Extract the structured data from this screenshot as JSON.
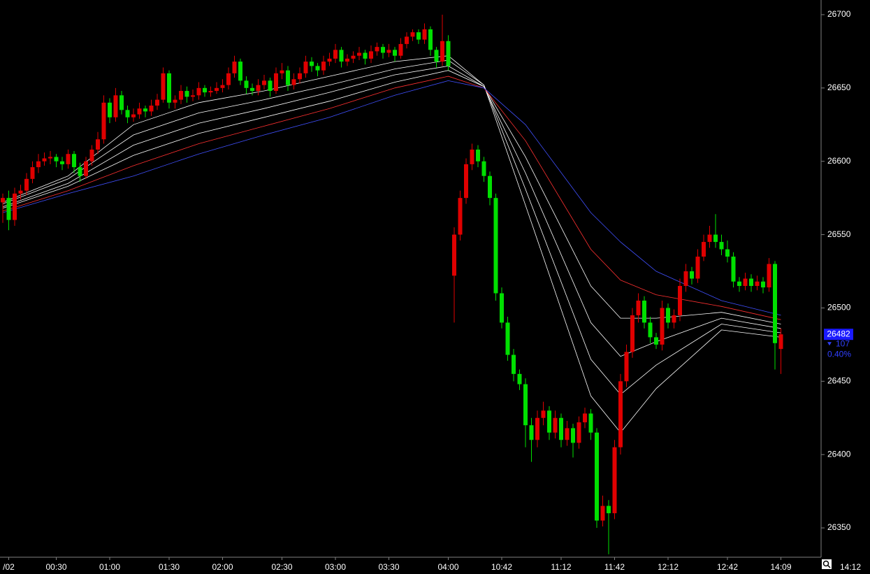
{
  "chart_data": {
    "type": "candlestick",
    "categories": [
      null,
      "/02",
      null,
      null,
      null,
      null,
      null,
      null,
      null,
      "00:30",
      null,
      null,
      null,
      null,
      null,
      null,
      null,
      null,
      "01:00",
      null,
      null,
      null,
      null,
      null,
      null,
      null,
      null,
      null,
      "01:30",
      null,
      null,
      null,
      null,
      null,
      null,
      null,
      null,
      "02:00",
      null,
      null,
      null,
      null,
      null,
      null,
      null,
      null,
      null,
      "02:30",
      null,
      null,
      null,
      null,
      null,
      null,
      null,
      null,
      "03:00",
      null,
      null,
      null,
      null,
      null,
      null,
      null,
      null,
      "03:30",
      null,
      null,
      null,
      null,
      null,
      null,
      null,
      null,
      null,
      "04:00",
      null,
      null,
      null,
      null,
      null,
      null,
      null,
      null,
      "10:42",
      null,
      null,
      null,
      null,
      null,
      null,
      null,
      null,
      null,
      "11:12",
      null,
      null,
      null,
      null,
      null,
      null,
      null,
      null,
      "11:42",
      null,
      null,
      null,
      null,
      null,
      null,
      null,
      null,
      "12:12",
      null,
      null,
      null,
      null,
      null,
      null,
      null,
      null,
      null,
      "12:42",
      null,
      null,
      null,
      null,
      null,
      null,
      null,
      null,
      "14:09"
    ],
    "candles": [
      [
        26572,
        26578,
        26558,
        26575
      ],
      [
        26575,
        26580,
        26553,
        26560
      ],
      [
        26560,
        26582,
        26556,
        26578
      ],
      [
        26578,
        26584,
        26574,
        26580
      ],
      [
        26580,
        26592,
        26577,
        26588
      ],
      [
        26588,
        26600,
        26585,
        26596
      ],
      [
        26596,
        26605,
        26592,
        26600
      ],
      [
        26600,
        26606,
        26597,
        26602
      ],
      [
        26602,
        26607,
        26598,
        26603
      ],
      [
        26603,
        26605,
        26596,
        26600
      ],
      [
        26600,
        26603,
        26594,
        26598
      ],
      [
        26598,
        26608,
        26595,
        26605
      ],
      [
        26605,
        26607,
        26592,
        26596
      ],
      [
        26596,
        26599,
        26586,
        26590
      ],
      [
        26590,
        26603,
        26588,
        26600
      ],
      [
        26600,
        26611,
        26597,
        26608
      ],
      [
        26608,
        26620,
        26605,
        26615
      ],
      [
        26615,
        26645,
        26612,
        26640
      ],
      [
        26640,
        26643,
        26626,
        26630
      ],
      [
        26630,
        26650,
        26627,
        26645
      ],
      [
        26645,
        26648,
        26632,
        26635
      ],
      [
        26635,
        26638,
        26626,
        26630
      ],
      [
        26630,
        26636,
        26627,
        26632
      ],
      [
        26632,
        26640,
        26629,
        26636
      ],
      [
        26636,
        26638,
        26630,
        26634
      ],
      [
        26634,
        26642,
        26631,
        26638
      ],
      [
        26638,
        26646,
        26635,
        26642
      ],
      [
        26642,
        26664,
        26640,
        26660
      ],
      [
        26660,
        26662,
        26636,
        26640
      ],
      [
        26640,
        26645,
        26636,
        26642
      ],
      [
        26642,
        26652,
        26639,
        26648
      ],
      [
        26648,
        26651,
        26640,
        26644
      ],
      [
        26644,
        26649,
        26641,
        26645
      ],
      [
        26645,
        26654,
        26642,
        26650
      ],
      [
        26650,
        26652,
        26644,
        26647
      ],
      [
        26647,
        26651,
        26644,
        26648
      ],
      [
        26648,
        26654,
        26646,
        26650
      ],
      [
        26650,
        26656,
        26647,
        26652
      ],
      [
        26652,
        26664,
        26649,
        26660
      ],
      [
        26660,
        26672,
        26657,
        26668
      ],
      [
        26668,
        26670,
        26652,
        26655
      ],
      [
        26655,
        26658,
        26646,
        26650
      ],
      [
        26650,
        26653,
        26645,
        26648
      ],
      [
        26648,
        26656,
        26645,
        26652
      ],
      [
        26652,
        26659,
        26649,
        26655
      ],
      [
        26655,
        26657,
        26644,
        26648
      ],
      [
        26648,
        26664,
        26646,
        26660
      ],
      [
        26660,
        26667,
        26656,
        26662
      ],
      [
        26662,
        26665,
        26648,
        26652
      ],
      [
        26652,
        26660,
        26649,
        26656
      ],
      [
        26656,
        26664,
        26653,
        26660
      ],
      [
        26660,
        26672,
        26657,
        26668
      ],
      [
        26668,
        26671,
        26661,
        26665
      ],
      [
        26665,
        26667,
        26658,
        26662
      ],
      [
        26662,
        26672,
        26659,
        26668
      ],
      [
        26668,
        26674,
        26665,
        26670
      ],
      [
        26670,
        26680,
        26667,
        26676
      ],
      [
        26676,
        26678,
        26664,
        26668
      ],
      [
        26668,
        26673,
        26665,
        26670
      ],
      [
        26670,
        26675,
        26667,
        26672
      ],
      [
        26672,
        26678,
        26669,
        26674
      ],
      [
        26674,
        26676,
        26666,
        26670
      ],
      [
        26670,
        26679,
        26667,
        26675
      ],
      [
        26675,
        26681,
        26672,
        26678
      ],
      [
        26678,
        26680,
        26670,
        26674
      ],
      [
        26674,
        26680,
        26671,
        26676
      ],
      [
        26676,
        26678,
        26668,
        26672
      ],
      [
        26672,
        26684,
        26670,
        26680
      ],
      [
        26680,
        26688,
        26677,
        26685
      ],
      [
        26685,
        26690,
        26682,
        26688
      ],
      [
        26688,
        26690,
        26680,
        26683
      ],
      [
        26683,
        26694,
        26680,
        26690
      ],
      [
        26690,
        26692,
        26672,
        26676
      ],
      [
        26676,
        26678,
        26664,
        26668
      ],
      [
        26668,
        26700,
        26665,
        26682
      ],
      [
        26682,
        26686,
        26662,
        26665
      ],
      [
        26522,
        26555,
        26490,
        26550
      ],
      [
        26550,
        26580,
        26546,
        26575
      ],
      [
        26575,
        26602,
        26571,
        26598
      ],
      [
        26598,
        26612,
        26594,
        26608
      ],
      [
        26608,
        26611,
        26596,
        26600
      ],
      [
        26600,
        26603,
        26586,
        26590
      ],
      [
        26590,
        26593,
        26570,
        26575
      ],
      [
        26575,
        26578,
        26505,
        26510
      ],
      [
        26510,
        26514,
        26486,
        26490
      ],
      [
        26490,
        26494,
        26464,
        26468
      ],
      [
        26468,
        26472,
        26450,
        26455
      ],
      [
        26455,
        26458,
        26444,
        26448
      ],
      [
        26448,
        26452,
        26405,
        26420
      ],
      [
        26420,
        26425,
        26395,
        26410
      ],
      [
        26410,
        26430,
        26405,
        26425
      ],
      [
        26425,
        26436,
        26420,
        26430
      ],
      [
        26430,
        26433,
        26410,
        26415
      ],
      [
        26415,
        26430,
        26411,
        26425
      ],
      [
        26425,
        26428,
        26405,
        26410
      ],
      [
        26410,
        26423,
        26406,
        26418
      ],
      [
        26418,
        26421,
        26398,
        26408
      ],
      [
        26408,
        26426,
        26404,
        26422
      ],
      [
        26422,
        26432,
        26418,
        26428
      ],
      [
        26428,
        26431,
        26410,
        26415
      ],
      [
        26415,
        26418,
        26350,
        26355
      ],
      [
        26355,
        26372,
        26351,
        26365
      ],
      [
        26365,
        26369,
        26332,
        26360
      ],
      [
        26360,
        26410,
        26356,
        26405
      ],
      [
        26405,
        26455,
        26400,
        26450
      ],
      [
        26450,
        26475,
        26446,
        26470
      ],
      [
        26470,
        26500,
        26466,
        26495
      ],
      [
        26495,
        26510,
        26490,
        26505
      ],
      [
        26505,
        26508,
        26486,
        26490
      ],
      [
        26490,
        26494,
        26476,
        26480
      ],
      [
        26480,
        26483,
        26472,
        26475
      ],
      [
        26475,
        26505,
        26471,
        26500
      ],
      [
        26500,
        26503,
        26486,
        26490
      ],
      [
        26490,
        26499,
        26486,
        26495
      ],
      [
        26495,
        26520,
        26491,
        26515
      ],
      [
        26515,
        26530,
        26511,
        26525
      ],
      [
        26525,
        26528,
        26516,
        26520
      ],
      [
        26520,
        26540,
        26517,
        26535
      ],
      [
        26535,
        26550,
        26532,
        26545
      ],
      [
        26545,
        26556,
        26541,
        26550
      ],
      [
        26550,
        26564,
        26541,
        26545
      ],
      [
        26545,
        26550,
        26536,
        26540
      ],
      [
        26540,
        26546,
        26531,
        26535
      ],
      [
        26535,
        26538,
        26514,
        26518
      ],
      [
        26518,
        26521,
        26511,
        26515
      ],
      [
        26515,
        26524,
        26512,
        26520
      ],
      [
        26520,
        26523,
        26511,
        26515
      ],
      [
        26515,
        26522,
        26512,
        26518
      ],
      [
        26518,
        26521,
        26510,
        26514
      ],
      [
        26514,
        26534,
        26511,
        26530
      ],
      [
        26530,
        26532,
        26458,
        26476
      ],
      [
        26472,
        26486,
        26455,
        26482
      ]
    ],
    "up_color": "#e00000",
    "down_color": "#00e000",
    "ribbon_x": [
      0,
      11,
      22,
      33,
      44,
      55,
      66,
      75,
      81,
      88,
      99,
      104,
      110,
      121,
      131
    ],
    "ribbons": [
      {
        "color": "#ffffff",
        "values": [
          26572,
          26590,
          26625,
          26640,
          26648,
          26658,
          26668,
          26672,
          26652,
          26570,
          26440,
          26415,
          26445,
          26485,
          26480
        ]
      },
      {
        "color": "#ffffff",
        "values": [
          26571,
          26588,
          26618,
          26633,
          26642,
          26652,
          26663,
          26669,
          26652,
          26581,
          26465,
          26441,
          26461,
          26489,
          26483
        ]
      },
      {
        "color": "#ffffff",
        "values": [
          26569,
          26585,
          26611,
          26626,
          26636,
          26647,
          26659,
          26665,
          26651,
          26592,
          26490,
          26467,
          26477,
          26493,
          26486
        ]
      },
      {
        "color": "#ffffff",
        "values": [
          26568,
          26583,
          26604,
          26619,
          26630,
          26641,
          26654,
          26662,
          26651,
          26603,
          26515,
          26493,
          26493,
          26497,
          26489
        ]
      },
      {
        "color": "#ff3030",
        "values": [
          26566,
          26580,
          26597,
          26612,
          26624,
          26636,
          26650,
          26658,
          26650,
          26614,
          26540,
          26519,
          26509,
          26501,
          26492
        ]
      },
      {
        "color": "#4050ff",
        "values": [
          26565,
          26578,
          26590,
          26605,
          26618,
          26630,
          26645,
          26655,
          26650,
          26625,
          26565,
          26545,
          26525,
          26505,
          26495
        ]
      }
    ],
    "ylim": [
      26330,
      26710
    ],
    "yticks": [
      26350,
      26400,
      26450,
      26500,
      26550,
      26600,
      26650,
      26700
    ],
    "last_price": 26482,
    "change": 107,
    "change_pct": {
      "value": 0.4,
      "label": "0.40%"
    },
    "time": "14:12"
  }
}
